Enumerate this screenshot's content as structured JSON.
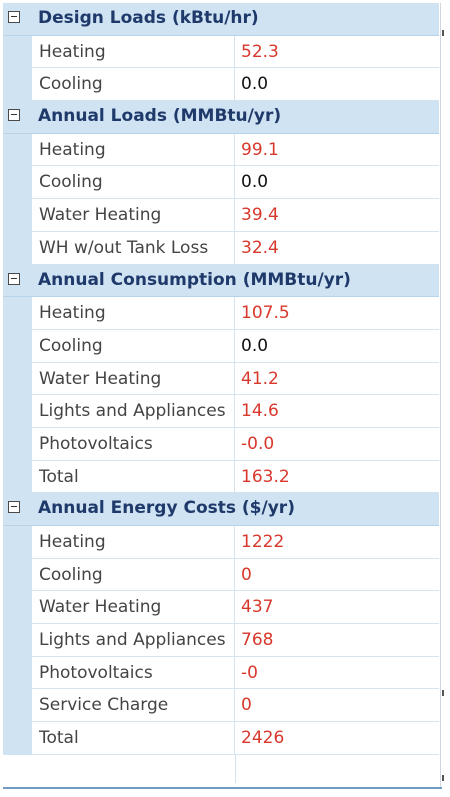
{
  "sections": [
    {
      "title": "Design Loads (kBtu/hr)",
      "rows": [
        {
          "name": "Heating",
          "value": "52.3"
        },
        {
          "name": "Cooling",
          "value": "0.0"
        }
      ]
    },
    {
      "title": "Annual Loads (MMBtu/yr)",
      "rows": [
        {
          "name": "Heating",
          "value": "99.1"
        },
        {
          "name": "Cooling",
          "value": "0.0"
        },
        {
          "name": "Water Heating",
          "value": "39.4"
        },
        {
          "name": "WH w/out Tank Loss",
          "value": "32.4"
        }
      ]
    },
    {
      "title": "Annual Consumption (MMBtu/yr)",
      "rows": [
        {
          "name": "Heating",
          "value": "107.5"
        },
        {
          "name": "Cooling",
          "value": "0.0"
        },
        {
          "name": "Water Heating",
          "value": "41.2"
        },
        {
          "name": "Lights and Appliances",
          "value": "14.6"
        },
        {
          "name": "Photovoltaics",
          "value": "-0.0"
        },
        {
          "name": "Total",
          "value": "163.2"
        }
      ]
    },
    {
      "title": "Annual Energy Costs ($/yr)",
      "rows": [
        {
          "name": "Heating",
          "value": "1222"
        },
        {
          "name": "Cooling",
          "value": "0"
        },
        {
          "name": "Water Heating",
          "value": "437"
        },
        {
          "name": "Lights and Appliances",
          "value": "768"
        },
        {
          "name": "Photovoltaics",
          "value": "-0"
        },
        {
          "name": "Service Charge",
          "value": "0"
        },
        {
          "name": "Total",
          "value": "2426"
        }
      ]
    }
  ],
  "colors": {
    "category_bg": "#cfe3f3",
    "category_text": "#1f3a6a",
    "value_highlight": "#d8382c",
    "value_normal": "#111111"
  }
}
